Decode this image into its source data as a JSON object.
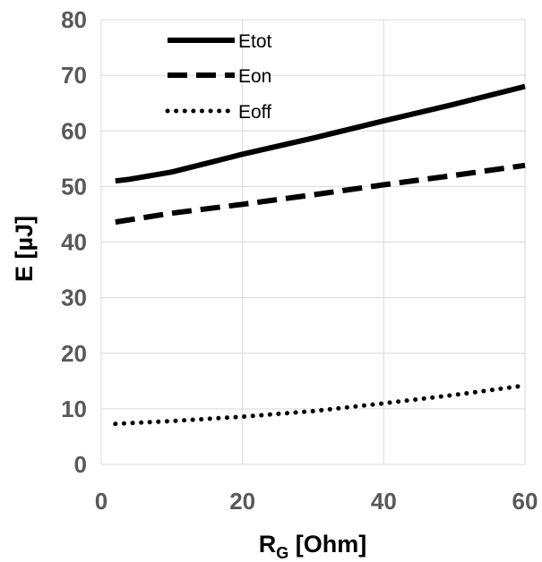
{
  "chart_data": {
    "type": "line",
    "title": "",
    "xlabel": "R",
    "xlabel_sub": "G",
    "xlabel_suffix": " [Ohm]",
    "ylabel": "E  [µJ]",
    "xlim": [
      0,
      60
    ],
    "ylim": [
      0,
      80
    ],
    "xticks": [
      0,
      20,
      40,
      60
    ],
    "yticks": [
      0,
      10,
      20,
      30,
      40,
      50,
      60,
      70,
      80
    ],
    "grid": true,
    "legend_position": "top-left",
    "series": [
      {
        "name": "Etot",
        "style": "solid",
        "color": "#000000",
        "x": [
          2,
          4,
          10,
          15,
          20,
          30,
          40,
          50,
          60
        ],
        "y": [
          51,
          51.3,
          52.6,
          54.2,
          55.8,
          58.7,
          61.8,
          64.8,
          68
        ]
      },
      {
        "name": "Eon",
        "style": "dashed",
        "color": "#000000",
        "x": [
          2,
          10,
          20,
          30,
          40,
          50,
          60
        ],
        "y": [
          43.6,
          45.2,
          46.8,
          48.5,
          50.3,
          52,
          53.8
        ]
      },
      {
        "name": "Eoff",
        "style": "dotted",
        "color": "#000000",
        "x": [
          2,
          10,
          20,
          30,
          40,
          50,
          60
        ],
        "y": [
          7.3,
          7.8,
          8.6,
          9.6,
          11,
          12.5,
          14.2
        ]
      }
    ]
  }
}
